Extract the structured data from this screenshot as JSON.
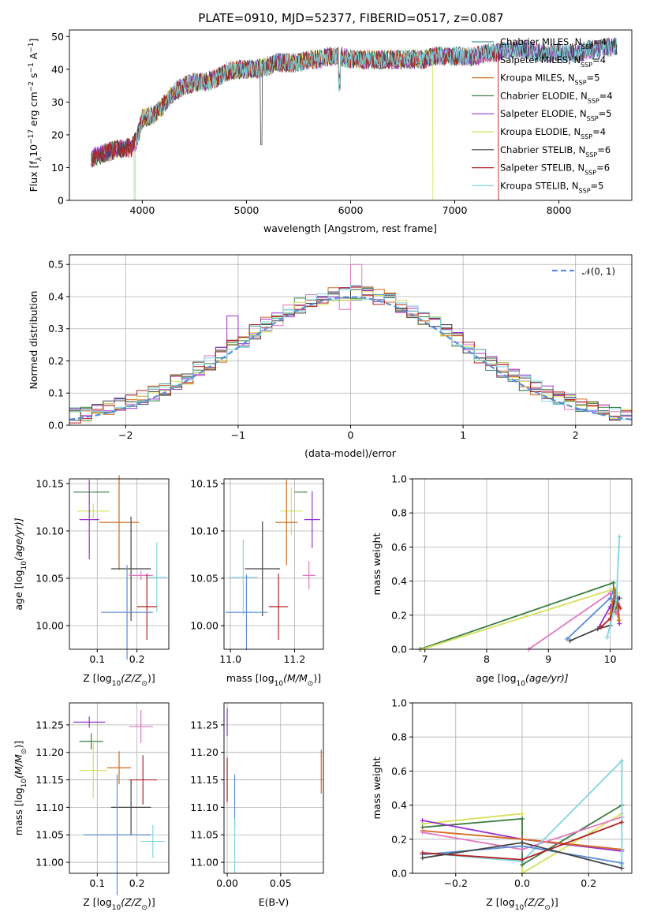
{
  "title": "PLATE=0910, MJD=52377, FIBERID=0517, z=0.087",
  "colors": {
    "cm": "#4a90a4",
    "sm": "#e377c2",
    "km": "#d2691e",
    "ce": "#3a7d44",
    "se": "#9932cc",
    "ke": "#d4e157",
    "cs": "#444444",
    "ss": "#b22222",
    "ks": "#7fd6e0",
    "blue": "#5b8ed6"
  },
  "series": [
    {
      "key": "cm",
      "label": "Chabrier MILES, N",
      "sub": "SSP",
      "suffix": "=4"
    },
    {
      "key": "sm",
      "label": "Salpeter MILES, N",
      "sub": "SSP",
      "suffix": "=4"
    },
    {
      "key": "km",
      "label": "Kroupa MILES, N",
      "sub": "SSP",
      "suffix": "=5"
    },
    {
      "key": "ce",
      "label": "Chabrier ELODIE, N",
      "sub": "SSP",
      "suffix": "=4"
    },
    {
      "key": "se",
      "label": "Salpeter ELODIE, N",
      "sub": "SSP",
      "suffix": "=5"
    },
    {
      "key": "ke",
      "label": "Kroupa ELODIE, N",
      "sub": "SSP",
      "suffix": "=4"
    },
    {
      "key": "cs",
      "label": "Chabrier STELIB, N",
      "sub": "SSP",
      "suffix": "=6"
    },
    {
      "key": "ss",
      "label": "Salpeter STELIB, N",
      "sub": "SSP",
      "suffix": "=6"
    },
    {
      "key": "ks",
      "label": "Kroupa STELIB, N",
      "sub": "SSP",
      "suffix": "=5"
    }
  ],
  "chart_data": [
    {
      "panel": "spectrum",
      "type": "line",
      "xlabel": "wavelength [Angstrom, rest frame]",
      "ylabel_pre": "Flux [f",
      "ylabel_sub": "λ",
      "ylabel_mid": "10",
      "ylabel_sup1": "−17",
      "ylabel_post": " erg cm",
      "ylabel_sup2": "−2",
      "ylabel_post2": " s",
      "ylabel_sup3": "−1",
      "ylabel_post3": " A",
      "ylabel_sup4": "−1",
      "ylabel_end": "]",
      "xlim": [
        3300,
        8700
      ],
      "ylim": [
        0,
        52
      ],
      "xticks": [
        4000,
        5000,
        6000,
        7000,
        8000
      ],
      "yticks": [
        0,
        10,
        20,
        30,
        40,
        50
      ],
      "envelope_x": [
        3520,
        3600,
        3700,
        3800,
        3900,
        3950,
        4000,
        4100,
        4200,
        4300,
        4400,
        4500,
        4600,
        4700,
        4800,
        4900,
        5000,
        5100,
        5200,
        5300,
        5400,
        5500,
        5600,
        5700,
        5800,
        5900,
        6000,
        6100,
        6200,
        6300,
        6400,
        6500,
        6600,
        6700,
        6800,
        6900,
        7000,
        7100,
        7200,
        7300,
        7400,
        7500,
        7600,
        7700,
        7800,
        7900,
        8000,
        8100,
        8200,
        8300,
        8400,
        8500
      ],
      "envelope_y": [
        13,
        14,
        15,
        16,
        16,
        19,
        25,
        26,
        29,
        33,
        35,
        36,
        36,
        37,
        39,
        40,
        40,
        40,
        41,
        42,
        42,
        42,
        43,
        43,
        44,
        44,
        43,
        43,
        43,
        43,
        43,
        43,
        43,
        43,
        44,
        44,
        44,
        44,
        44,
        45,
        45,
        46,
        46,
        46,
        45,
        45,
        45,
        45,
        45,
        46,
        46,
        47
      ],
      "ends": {
        "cm": 8560,
        "sm": 8560,
        "km": 7420,
        "ce": 8560,
        "se": 8560,
        "ke": 6790,
        "cs": 8560,
        "ss": 7420,
        "ks": 8560
      },
      "starts": {
        "cm": 3510,
        "sm": 3510,
        "km": 3510,
        "ce": 3510,
        "se": 3510,
        "ke": 3920,
        "cs": 3510,
        "ss": 3510,
        "ks": 3930
      }
    },
    {
      "panel": "residuals",
      "type": "histogram",
      "xlabel": "(data-model)/error",
      "ylabel": "Normed distribution",
      "xlim": [
        -2.5,
        2.5
      ],
      "ylim": [
        0,
        0.53
      ],
      "xticks": [
        -2,
        -1,
        0,
        1,
        2
      ],
      "yticks": [
        0.0,
        0.1,
        0.2,
        0.3,
        0.4,
        0.5
      ],
      "legend": "𝒩(0, 1)",
      "bin_width": 0.1,
      "bin_start": -2.5,
      "special_bins": {
        "sm": {
          "0.0": 0.5,
          "-0.1": 0.36
        },
        "km": {
          "0.1": 0.43
        },
        "se": {
          "-1.1": 0.34,
          "-1.9": 0.07
        }
      }
    },
    {
      "panel": "age_vs_Z",
      "type": "scatter",
      "xlabel_pre": "Z [log",
      "xlabel_sub": "10",
      "xlabel_post": "(Z/Z",
      "xlabel_sub2": "⊙",
      "xlabel_end": ")]",
      "ylabel_pre": "age  [log",
      "ylabel_sub": "10",
      "ylabel_post": "(age/yr)]",
      "xlim": [
        0.03,
        0.28
      ],
      "ylim": [
        9.975,
        10.155
      ],
      "xticks": [
        0.1,
        0.2
      ],
      "yticks": [
        10.0,
        10.05,
        10.1,
        10.15
      ],
      "points": [
        {
          "key": "ce",
          "x": 0.085,
          "y": 10.141,
          "xerr": 0.045,
          "yerr": 0.0
        },
        {
          "key": "ke",
          "x": 0.09,
          "y": 10.121,
          "xerr": 0.04,
          "yerr": 0.008
        },
        {
          "key": "se",
          "x": 0.08,
          "y": 10.112,
          "xerr": 0.025,
          "yerr": 0.042
        },
        {
          "key": "km",
          "x": 0.155,
          "y": 10.109,
          "xerr": 0.05,
          "yerr": 0.05
        },
        {
          "key": "cs",
          "x": 0.185,
          "y": 10.06,
          "xerr": 0.05,
          "yerr": 0.055
        },
        {
          "key": "sm",
          "x": 0.21,
          "y": 10.053,
          "xerr": 0.03,
          "yerr": 0.005
        },
        {
          "key": "ks",
          "x": 0.25,
          "y": 10.051,
          "xerr": 0.025,
          "yerr": 0.037
        },
        {
          "key": "ss",
          "x": 0.225,
          "y": 10.02,
          "xerr": 0.025,
          "yerr": 0.035
        },
        {
          "key": "blue",
          "x": 0.175,
          "y": 10.014,
          "xerr": 0.065,
          "yerr": 0.05
        }
      ]
    },
    {
      "panel": "age_vs_mass",
      "type": "scatter",
      "xlabel_pre": "mass [log",
      "xlabel_sub": "10",
      "xlabel_post": "(M/M",
      "xlabel_sub2": "⊙",
      "xlabel_end": ")]",
      "xlim": [
        10.98,
        11.29
      ],
      "ylim": [
        9.975,
        10.155
      ],
      "xticks": [
        11.0,
        11.2
      ],
      "yticks": [
        10.0,
        10.05,
        10.1,
        10.15
      ],
      "points": [
        {
          "key": "ce",
          "x": 11.22,
          "y": 10.141,
          "xerr": 0.02,
          "yerr": 0.0
        },
        {
          "key": "ke",
          "x": 11.19,
          "y": 10.121,
          "xerr": 0.035,
          "yerr": 0.025
        },
        {
          "key": "se",
          "x": 11.255,
          "y": 10.112,
          "xerr": 0.025,
          "yerr": 0.03
        },
        {
          "key": "km",
          "x": 11.175,
          "y": 10.109,
          "xerr": 0.035,
          "yerr": 0.045
        },
        {
          "key": "cs",
          "x": 11.1,
          "y": 10.06,
          "xerr": 0.055,
          "yerr": 0.05
        },
        {
          "key": "sm",
          "x": 11.245,
          "y": 10.053,
          "xerr": 0.02,
          "yerr": 0.015
        },
        {
          "key": "ks",
          "x": 11.04,
          "y": 10.051,
          "xerr": 0.045,
          "yerr": 0.04
        },
        {
          "key": "ss",
          "x": 11.15,
          "y": 10.02,
          "xerr": 0.03,
          "yerr": 0.035
        },
        {
          "key": "blue",
          "x": 11.05,
          "y": 10.014,
          "xerr": 0.065,
          "yerr": 0.04
        }
      ]
    },
    {
      "panel": "weight_vs_age",
      "type": "line",
      "xlabel_pre": "age  [log",
      "xlabel_sub": "10",
      "xlabel_post": "(age/yr)]",
      "ylabel": "mass weight",
      "xlim": [
        6.8,
        10.35
      ],
      "ylim": [
        0,
        1.0
      ],
      "xticks": [
        7,
        8,
        9,
        10
      ],
      "yticks": [
        0.0,
        0.2,
        0.4,
        0.6,
        0.8,
        1.0
      ],
      "lines": [
        {
          "key": "ce",
          "x": [
            6.92,
            10.05,
            10.08,
            10.12,
            10.14
          ],
          "y": [
            0.0,
            0.39,
            0.22,
            0.27,
            0.25
          ]
        },
        {
          "key": "ke",
          "x": [
            6.95,
            10.03,
            10.1,
            10.12
          ],
          "y": [
            0.0,
            0.35,
            0.3,
            0.33
          ]
        },
        {
          "key": "sm",
          "x": [
            8.68,
            10.0,
            10.05,
            10.12
          ],
          "y": [
            0.0,
            0.33,
            0.25,
            0.2
          ]
        },
        {
          "key": "blue",
          "x": [
            9.3,
            10.0,
            10.05,
            10.13
          ],
          "y": [
            0.06,
            0.3,
            0.34,
            0.26
          ]
        },
        {
          "key": "se",
          "x": [
            9.8,
            10.0,
            10.1,
            10.12,
            10.15
          ],
          "y": [
            0.12,
            0.25,
            0.31,
            0.3,
            0.15
          ]
        },
        {
          "key": "cs",
          "x": [
            9.35,
            9.8,
            10.0,
            10.06,
            10.15
          ],
          "y": [
            0.05,
            0.12,
            0.14,
            0.28,
            0.3
          ]
        },
        {
          "key": "ss",
          "x": [
            9.85,
            10.0,
            10.1,
            10.16
          ],
          "y": [
            0.13,
            0.18,
            0.29,
            0.24
          ]
        },
        {
          "key": "km",
          "x": [
            10.0,
            10.08,
            10.12,
            10.14
          ],
          "y": [
            0.21,
            0.35,
            0.24,
            0.17
          ]
        },
        {
          "key": "ks",
          "x": [
            9.95,
            10.1,
            10.15
          ],
          "y": [
            0.07,
            0.29,
            0.66
          ]
        }
      ]
    },
    {
      "panel": "mass_vs_Z",
      "type": "scatter",
      "xlabel_pre": "Z [log",
      "xlabel_sub": "10",
      "xlabel_post": "(Z/Z",
      "xlabel_sub2": "⊙",
      "xlabel_end": ")]",
      "ylabel_pre": "mass [log",
      "ylabel_sub": "10",
      "ylabel_post": "(M/M",
      "ylabel_sub2": "⊙",
      "ylabel_end": ")]",
      "xlim": [
        0.03,
        0.28
      ],
      "ylim": [
        10.98,
        11.29
      ],
      "xticks": [
        0.1,
        0.2
      ],
      "yticks": [
        11.0,
        11.05,
        11.1,
        11.15,
        11.2,
        11.25
      ],
      "points": [
        {
          "key": "se",
          "x": 0.08,
          "y": 11.255,
          "xerr": 0.04,
          "yerr": 0.01
        },
        {
          "key": "sm",
          "x": 0.21,
          "y": 11.247,
          "xerr": 0.03,
          "yerr": 0.03
        },
        {
          "key": "ce",
          "x": 0.085,
          "y": 11.22,
          "xerr": 0.03,
          "yerr": 0.015
        },
        {
          "key": "ke",
          "x": 0.09,
          "y": 11.167,
          "xerr": 0.035,
          "yerr": 0.05
        },
        {
          "key": "km",
          "x": 0.155,
          "y": 11.172,
          "xerr": 0.03,
          "yerr": 0.03
        },
        {
          "key": "ss",
          "x": 0.215,
          "y": 11.15,
          "xerr": 0.035,
          "yerr": 0.045
        },
        {
          "key": "cs",
          "x": 0.185,
          "y": 11.1,
          "xerr": 0.05,
          "yerr": 0.05
        },
        {
          "key": "blue",
          "x": 0.15,
          "y": 11.05,
          "xerr": 0.085,
          "yerr": 0.11
        },
        {
          "key": "ks",
          "x": 0.24,
          "y": 11.038,
          "xerr": 0.03,
          "yerr": 0.03
        }
      ]
    },
    {
      "panel": "mass_vs_EBV",
      "type": "scatter",
      "xlabel": "E(B-V)",
      "xlim": [
        -0.003,
        0.09
      ],
      "ylim": [
        10.98,
        11.29
      ],
      "xticks": [
        0.0,
        0.05
      ],
      "yticks": [
        11.0,
        11.05,
        11.1,
        11.15,
        11.2,
        11.25
      ],
      "points": [
        {
          "key": "se",
          "x": 0.0,
          "y": 11.255,
          "xerr": 0.0,
          "yerr": 0.025
        },
        {
          "key": "ss",
          "x": 0.0,
          "y": 11.15,
          "xerr": 0.0,
          "yerr": 0.04
        },
        {
          "key": "km",
          "x": 0.088,
          "y": 11.165,
          "xerr": 0.0,
          "yerr": 0.04
        },
        {
          "key": "blue",
          "x": 0.007,
          "y": 11.11,
          "xerr": 0.0,
          "yerr": 0.05
        },
        {
          "key": "ks",
          "x": 0.007,
          "y": 11.03,
          "xerr": 0.0,
          "yerr": 0.05
        }
      ]
    },
    {
      "panel": "weight_vs_Z",
      "type": "line",
      "xlabel_pre": "Z [log",
      "xlabel_sub": "10",
      "xlabel_post": "(Z/Z",
      "xlabel_sub2": "⊙",
      "xlabel_end": ")]",
      "ylabel": "mass weight",
      "xlim": [
        -0.33,
        0.33
      ],
      "ylim": [
        0,
        1.0
      ],
      "xticks": [
        -0.2,
        0.0,
        0.2
      ],
      "yticks": [
        0.0,
        0.2,
        0.4,
        0.6,
        0.8,
        1.0
      ],
      "lines": [
        {
          "key": "ke",
          "x": [
            -0.3,
            0.0,
            0.0,
            0.3
          ],
          "y": [
            0.29,
            0.35,
            0.0,
            0.35
          ]
        },
        {
          "key": "ce",
          "x": [
            -0.3,
            0.0,
            0.0,
            0.3
          ],
          "y": [
            0.27,
            0.32,
            0.05,
            0.4
          ]
        },
        {
          "key": "se",
          "x": [
            -0.3,
            0.0,
            0.3
          ],
          "y": [
            0.31,
            0.2,
            0.13
          ]
        },
        {
          "key": "km",
          "x": [
            -0.3,
            0.0,
            0.3
          ],
          "y": [
            0.25,
            0.2,
            0.14
          ]
        },
        {
          "key": "sm",
          "x": [
            -0.3,
            0.0,
            0.3
          ],
          "y": [
            0.24,
            0.14,
            0.33
          ]
        },
        {
          "key": "ks",
          "x": [
            -0.3,
            0.0,
            0.3,
            0.3
          ],
          "y": [
            0.12,
            0.07,
            0.66,
            0.05
          ]
        },
        {
          "key": "blue",
          "x": [
            -0.3,
            0.0,
            0.3
          ],
          "y": [
            0.11,
            0.16,
            0.06
          ]
        },
        {
          "key": "ss",
          "x": [
            -0.3,
            0.0,
            0.3
          ],
          "y": [
            0.12,
            0.08,
            0.3
          ]
        },
        {
          "key": "cs",
          "x": [
            -0.3,
            0.0,
            0.3
          ],
          "y": [
            0.09,
            0.18,
            0.03
          ]
        }
      ]
    }
  ]
}
